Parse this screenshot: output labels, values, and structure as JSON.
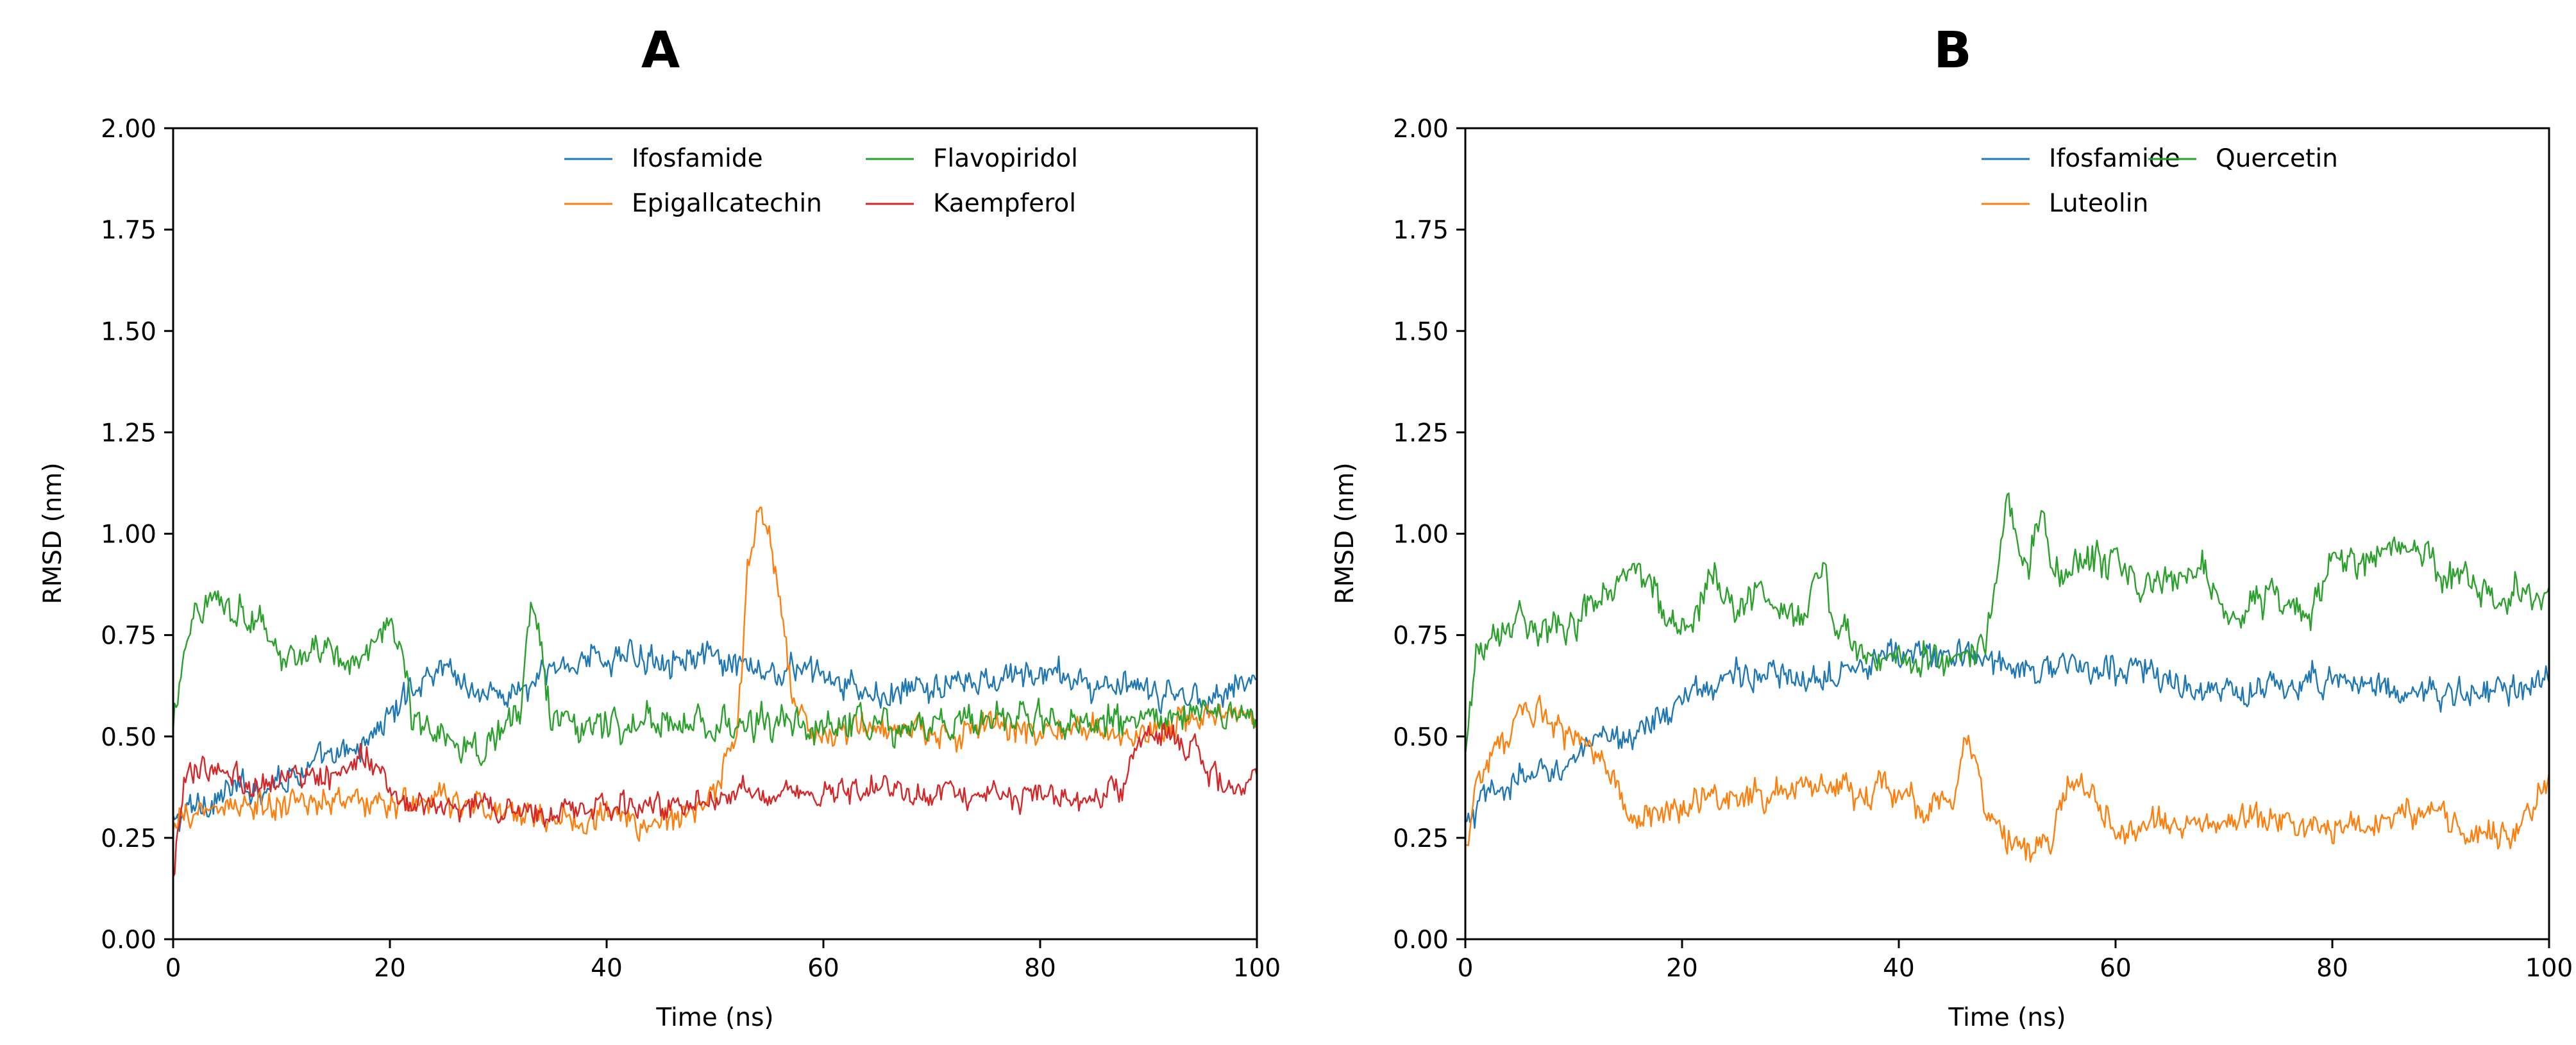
{
  "colors": {
    "blue": "#1f77b4",
    "orange": "#ff7f0e",
    "green": "#2ca02c",
    "red": "#d62728"
  },
  "chart_data": [
    {
      "type": "line",
      "panel": "A",
      "title": "A",
      "xlabel": "Time (ns)",
      "ylabel": "RMSD (nm)",
      "xlim": [
        0,
        100
      ],
      "ylim": [
        0,
        2.0
      ],
      "xticks": [
        0,
        20,
        40,
        60,
        80,
        100
      ],
      "xtick_labels": [
        "0",
        "20",
        "40",
        "60",
        "80",
        "100"
      ],
      "yticks": [
        0,
        0.25,
        0.5,
        0.75,
        1.0,
        1.25,
        1.5,
        1.75,
        2.0
      ],
      "ytick_labels": [
        "0.00",
        "0.25",
        "0.50",
        "0.75",
        "1.00",
        "1.25",
        "1.50",
        "1.75",
        "2.00"
      ],
      "legend": "top-right, 2 columns",
      "series": [
        {
          "name": "Ifosfamide",
          "color": "#1f77b4",
          "noise": 0.045,
          "points": [
            [
              0,
              0.28
            ],
            [
              2,
              0.33
            ],
            [
              5,
              0.36
            ],
            [
              8,
              0.38
            ],
            [
              10,
              0.4
            ],
            [
              12,
              0.42
            ],
            [
              15,
              0.44
            ],
            [
              17,
              0.47
            ],
            [
              20,
              0.55
            ],
            [
              22,
              0.62
            ],
            [
              24,
              0.66
            ],
            [
              25,
              0.68
            ],
            [
              28,
              0.61
            ],
            [
              30,
              0.6
            ],
            [
              33,
              0.62
            ],
            [
              35,
              0.66
            ],
            [
              38,
              0.7
            ],
            [
              40,
              0.69
            ],
            [
              45,
              0.7
            ],
            [
              48,
              0.7
            ],
            [
              50,
              0.68
            ],
            [
              55,
              0.65
            ],
            [
              58,
              0.67
            ],
            [
              60,
              0.65
            ],
            [
              62,
              0.62
            ],
            [
              65,
              0.6
            ],
            [
              70,
              0.62
            ],
            [
              75,
              0.63
            ],
            [
              80,
              0.66
            ],
            [
              85,
              0.63
            ],
            [
              90,
              0.6
            ],
            [
              95,
              0.6
            ],
            [
              100,
              0.64
            ]
          ]
        },
        {
          "name": "Epigallcatechin",
          "color": "#ff7f0e",
          "noise": 0.045,
          "points": [
            [
              0,
              0.25
            ],
            [
              1,
              0.3
            ],
            [
              3,
              0.32
            ],
            [
              5,
              0.33
            ],
            [
              10,
              0.32
            ],
            [
              15,
              0.35
            ],
            [
              20,
              0.33
            ],
            [
              25,
              0.34
            ],
            [
              30,
              0.32
            ],
            [
              35,
              0.3
            ],
            [
              40,
              0.3
            ],
            [
              45,
              0.28
            ],
            [
              48,
              0.32
            ],
            [
              50,
              0.38
            ],
            [
              52,
              0.48
            ],
            [
              53,
              0.9
            ],
            [
              54,
              1.05
            ],
            [
              55,
              1.02
            ],
            [
              56,
              0.85
            ],
            [
              57,
              0.6
            ],
            [
              58,
              0.55
            ],
            [
              60,
              0.5
            ],
            [
              65,
              0.52
            ],
            [
              70,
              0.5
            ],
            [
              75,
              0.52
            ],
            [
              80,
              0.51
            ],
            [
              85,
              0.52
            ],
            [
              88,
              0.5
            ],
            [
              90,
              0.52
            ],
            [
              95,
              0.55
            ],
            [
              100,
              0.56
            ]
          ]
        },
        {
          "name": "Flavopiridol",
          "color": "#2ca02c",
          "noise": 0.05,
          "points": [
            [
              0,
              0.5
            ],
            [
              1,
              0.72
            ],
            [
              2,
              0.82
            ],
            [
              4,
              0.85
            ],
            [
              6,
              0.82
            ],
            [
              8,
              0.78
            ],
            [
              10,
              0.7
            ],
            [
              12,
              0.7
            ],
            [
              14,
              0.69
            ],
            [
              16,
              0.68
            ],
            [
              18,
              0.72
            ],
            [
              20,
              0.8
            ],
            [
              21,
              0.7
            ],
            [
              22,
              0.55
            ],
            [
              24,
              0.5
            ],
            [
              26,
              0.49
            ],
            [
              28,
              0.48
            ],
            [
              30,
              0.5
            ],
            [
              32,
              0.55
            ],
            [
              33,
              0.85
            ],
            [
              34,
              0.7
            ],
            [
              35,
              0.55
            ],
            [
              38,
              0.53
            ],
            [
              40,
              0.53
            ],
            [
              45,
              0.53
            ],
            [
              50,
              0.52
            ],
            [
              55,
              0.53
            ],
            [
              60,
              0.52
            ],
            [
              65,
              0.52
            ],
            [
              70,
              0.53
            ],
            [
              75,
              0.55
            ],
            [
              80,
              0.55
            ],
            [
              85,
              0.53
            ],
            [
              90,
              0.53
            ],
            [
              95,
              0.55
            ],
            [
              100,
              0.54
            ]
          ]
        },
        {
          "name": "Kaempferol",
          "color": "#d62728",
          "noise": 0.04,
          "points": [
            [
              0,
              0.15
            ],
            [
              1,
              0.38
            ],
            [
              2,
              0.42
            ],
            [
              4,
              0.42
            ],
            [
              6,
              0.4
            ],
            [
              8,
              0.38
            ],
            [
              10,
              0.4
            ],
            [
              12,
              0.4
            ],
            [
              14,
              0.4
            ],
            [
              16,
              0.42
            ],
            [
              18,
              0.46
            ],
            [
              20,
              0.34
            ],
            [
              25,
              0.33
            ],
            [
              30,
              0.32
            ],
            [
              35,
              0.31
            ],
            [
              40,
              0.32
            ],
            [
              45,
              0.33
            ],
            [
              50,
              0.35
            ],
            [
              55,
              0.37
            ],
            [
              60,
              0.36
            ],
            [
              65,
              0.37
            ],
            [
              70,
              0.35
            ],
            [
              75,
              0.34
            ],
            [
              80,
              0.35
            ],
            [
              85,
              0.35
            ],
            [
              88,
              0.38
            ],
            [
              89,
              0.48
            ],
            [
              90,
              0.52
            ],
            [
              92,
              0.5
            ],
            [
              94,
              0.47
            ],
            [
              96,
              0.4
            ],
            [
              98,
              0.38
            ],
            [
              100,
              0.4
            ]
          ]
        }
      ]
    },
    {
      "type": "line",
      "panel": "B",
      "title": "B",
      "xlabel": "Time (ns)",
      "ylabel": "RMSD (nm)",
      "xlim": [
        0,
        100
      ],
      "ylim": [
        0,
        2.0
      ],
      "xticks": [
        0,
        20,
        40,
        60,
        80,
        100
      ],
      "xtick_labels": [
        "0",
        "20",
        "40",
        "60",
        "80",
        "100"
      ],
      "yticks": [
        0,
        0.25,
        0.5,
        0.75,
        1.0,
        1.25,
        1.5,
        1.75,
        2.0
      ],
      "ytick_labels": [
        "0.00",
        "0.25",
        "0.50",
        "0.75",
        "1.00",
        "1.25",
        "1.50",
        "1.75",
        "2.00"
      ],
      "legend": "top-right, 2 columns",
      "series": [
        {
          "name": "Ifosfamide",
          "color": "#1f77b4",
          "noise": 0.045,
          "points": [
            [
              0,
              0.27
            ],
            [
              2,
              0.35
            ],
            [
              4,
              0.38
            ],
            [
              6,
              0.4
            ],
            [
              8,
              0.42
            ],
            [
              10,
              0.45
            ],
            [
              12,
              0.47
            ],
            [
              14,
              0.5
            ],
            [
              16,
              0.52
            ],
            [
              18,
              0.55
            ],
            [
              20,
              0.58
            ],
            [
              22,
              0.62
            ],
            [
              25,
              0.66
            ],
            [
              28,
              0.65
            ],
            [
              30,
              0.63
            ],
            [
              35,
              0.68
            ],
            [
              40,
              0.7
            ],
            [
              45,
              0.7
            ],
            [
              50,
              0.68
            ],
            [
              55,
              0.67
            ],
            [
              60,
              0.66
            ],
            [
              62,
              0.68
            ],
            [
              65,
              0.63
            ],
            [
              70,
              0.6
            ],
            [
              75,
              0.62
            ],
            [
              80,
              0.65
            ],
            [
              85,
              0.62
            ],
            [
              90,
              0.6
            ],
            [
              95,
              0.61
            ],
            [
              100,
              0.63
            ]
          ]
        },
        {
          "name": "Luteolin",
          "color": "#ff7f0e",
          "noise": 0.045,
          "points": [
            [
              0,
              0.22
            ],
            [
              1,
              0.4
            ],
            [
              3,
              0.48
            ],
            [
              5,
              0.53
            ],
            [
              7,
              0.56
            ],
            [
              9,
              0.52
            ],
            [
              10,
              0.5
            ],
            [
              12,
              0.45
            ],
            [
              14,
              0.38
            ],
            [
              15,
              0.3
            ],
            [
              18,
              0.32
            ],
            [
              20,
              0.33
            ],
            [
              25,
              0.35
            ],
            [
              30,
              0.37
            ],
            [
              35,
              0.38
            ],
            [
              40,
              0.36
            ],
            [
              42,
              0.32
            ],
            [
              45,
              0.36
            ],
            [
              46,
              0.48
            ],
            [
              47,
              0.45
            ],
            [
              48,
              0.3
            ],
            [
              50,
              0.24
            ],
            [
              52,
              0.22
            ],
            [
              54,
              0.24
            ],
            [
              56,
              0.4
            ],
            [
              58,
              0.35
            ],
            [
              60,
              0.27
            ],
            [
              65,
              0.28
            ],
            [
              70,
              0.3
            ],
            [
              75,
              0.29
            ],
            [
              80,
              0.27
            ],
            [
              85,
              0.3
            ],
            [
              88,
              0.32
            ],
            [
              90,
              0.3
            ],
            [
              92,
              0.28
            ],
            [
              95,
              0.25
            ],
            [
              98,
              0.3
            ],
            [
              100,
              0.4
            ]
          ]
        },
        {
          "name": "Quercetin",
          "color": "#2ca02c",
          "noise": 0.05,
          "points": [
            [
              0,
              0.45
            ],
            [
              1,
              0.7
            ],
            [
              3,
              0.78
            ],
            [
              5,
              0.8
            ],
            [
              7,
              0.78
            ],
            [
              9,
              0.75
            ],
            [
              11,
              0.8
            ],
            [
              13,
              0.88
            ],
            [
              15,
              0.9
            ],
            [
              17,
              0.88
            ],
            [
              19,
              0.75
            ],
            [
              21,
              0.78
            ],
            [
              23,
              0.9
            ],
            [
              25,
              0.82
            ],
            [
              27,
              0.84
            ],
            [
              29,
              0.8
            ],
            [
              31,
              0.78
            ],
            [
              33,
              0.92
            ],
            [
              34,
              0.8
            ],
            [
              36,
              0.72
            ],
            [
              38,
              0.7
            ],
            [
              40,
              0.7
            ],
            [
              42,
              0.68
            ],
            [
              45,
              0.7
            ],
            [
              47,
              0.72
            ],
            [
              48,
              0.75
            ],
            [
              49,
              0.9
            ],
            [
              50,
              1.12
            ],
            [
              51,
              0.95
            ],
            [
              52,
              0.92
            ],
            [
              53,
              1.05
            ],
            [
              54,
              0.95
            ],
            [
              55,
              0.9
            ],
            [
              58,
              0.92
            ],
            [
              60,
              0.93
            ],
            [
              62,
              0.88
            ],
            [
              65,
              0.86
            ],
            [
              68,
              0.9
            ],
            [
              70,
              0.78
            ],
            [
              72,
              0.82
            ],
            [
              75,
              0.84
            ],
            [
              78,
              0.8
            ],
            [
              80,
              0.95
            ],
            [
              83,
              0.92
            ],
            [
              85,
              0.96
            ],
            [
              88,
              0.97
            ],
            [
              90,
              0.9
            ],
            [
              92,
              0.88
            ],
            [
              95,
              0.85
            ],
            [
              98,
              0.86
            ],
            [
              100,
              0.84
            ]
          ]
        }
      ]
    }
  ]
}
